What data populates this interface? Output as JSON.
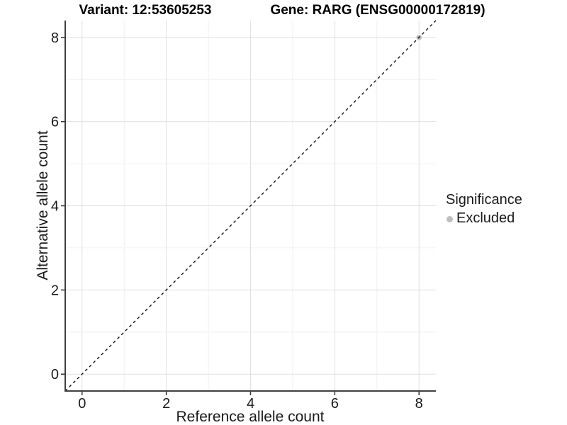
{
  "titles": {
    "left": "Variant: 12:53605253",
    "right": "Gene: RARG (ENSG00000172819)"
  },
  "axes": {
    "x_label": "Reference allele count",
    "y_label": "Alternative allele count"
  },
  "legend": {
    "title": "Significance",
    "items": [
      {
        "label": "Excluded",
        "color": "#BEBEBE"
      }
    ]
  },
  "colors": {
    "background": "#FFFFFF",
    "grid_major": "#E0E0E0",
    "grid_minor": "#F0F0F0",
    "axis_line": "#404040",
    "tick_mark": "#333333",
    "tick_label": "#1a1a1a",
    "reference_line": "#000000",
    "point_excluded": "#BEBEBE"
  },
  "chart_data": {
    "type": "scatter",
    "title_left": "Variant: 12:53605253",
    "title_right": "Gene: RARG (ENSG00000172819)",
    "xlabel": "Reference allele count",
    "ylabel": "Alternative allele count",
    "xlim": [
      -0.4,
      8.4
    ],
    "ylim": [
      -0.4,
      8.4
    ],
    "x_ticks": [
      0,
      2,
      4,
      6,
      8
    ],
    "y_ticks": [
      0,
      2,
      4,
      6,
      8
    ],
    "x_minor_ticks": [
      1,
      3,
      5,
      7
    ],
    "y_minor_ticks": [
      1,
      3,
      5,
      7
    ],
    "grid": "major+minor",
    "legend_position": "right",
    "series": [
      {
        "name": "Excluded",
        "color": "#BEBEBE",
        "points": [
          {
            "x": 8,
            "y": 8
          }
        ]
      }
    ],
    "reference_line": {
      "style": "dashed",
      "color": "#000000",
      "from": [
        -0.4,
        -0.4
      ],
      "to": [
        8.4,
        8.4
      ]
    }
  }
}
